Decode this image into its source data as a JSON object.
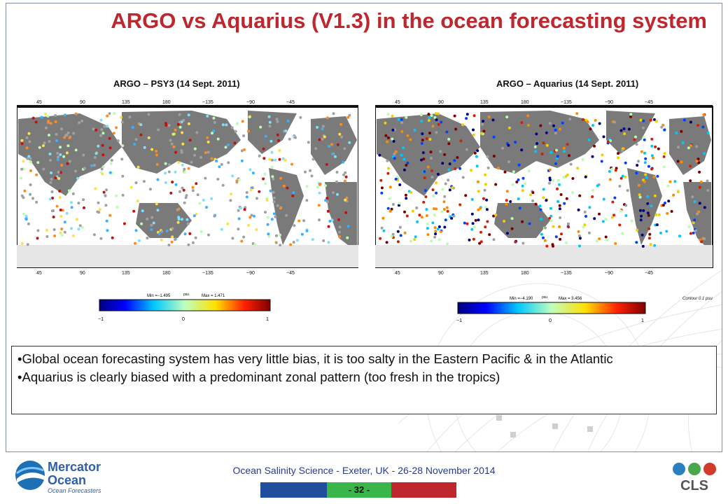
{
  "slide": {
    "title": "ARGO vs Aquarius (V1.3) in the ocean forecasting system",
    "left_panel": {
      "title": "ARGO – PSY3 (14 Sept. 2011)",
      "top_ticks": [
        "45",
        "90",
        "135",
        "180",
        "−135",
        "−90",
        "−45"
      ],
      "bottom_ticks": [
        "45",
        "90",
        "135",
        "180",
        "−135",
        "−90",
        "−45"
      ],
      "colorbar_min": "Min =−1.495",
      "colorbar_unit": "psu",
      "colorbar_max": "Max = 1.471",
      "colorbar_ticks": [
        "−1",
        "0",
        "1"
      ]
    },
    "right_panel": {
      "title": "ARGO – Aquarius (14 Sept. 2011)",
      "top_ticks": [
        "45",
        "90",
        "135",
        "180",
        "−135",
        "−90",
        "−45"
      ],
      "bottom_ticks": [
        "45",
        "90",
        "135",
        "180",
        "−135",
        "−90",
        "−45"
      ],
      "colorbar_min": "Min =−4.190",
      "colorbar_unit": "psu",
      "colorbar_max": "Max = 3.456",
      "colorbar_ticks": [
        "−1",
        "0",
        "1"
      ],
      "note": "Contour 0.1 psu"
    },
    "bullets": [
      "•Global ocean forecasting system has very little bias, it is too salty in the Eastern Pacific & in the Atlantic",
      "•Aquarius is clearly biased with a predominant zonal pattern (too fresh in the tropics)"
    ]
  },
  "footer": {
    "text": "Ocean Salinity Science - Exeter, UK - 26-28 November 2014",
    "page": "- 32 -",
    "logo_left_line1": "Mercator",
    "logo_left_line2": "Ocean",
    "logo_left_tagline": "Ocean Forecasters",
    "logo_right": "CLS"
  },
  "colors": {
    "title": "#c0262d",
    "footer_text": "#2a3a8c",
    "land": "#7a7a7a",
    "bar_blue": "#1f4e9c",
    "bar_green": "#39b54a",
    "bar_red": "#c0262d"
  }
}
